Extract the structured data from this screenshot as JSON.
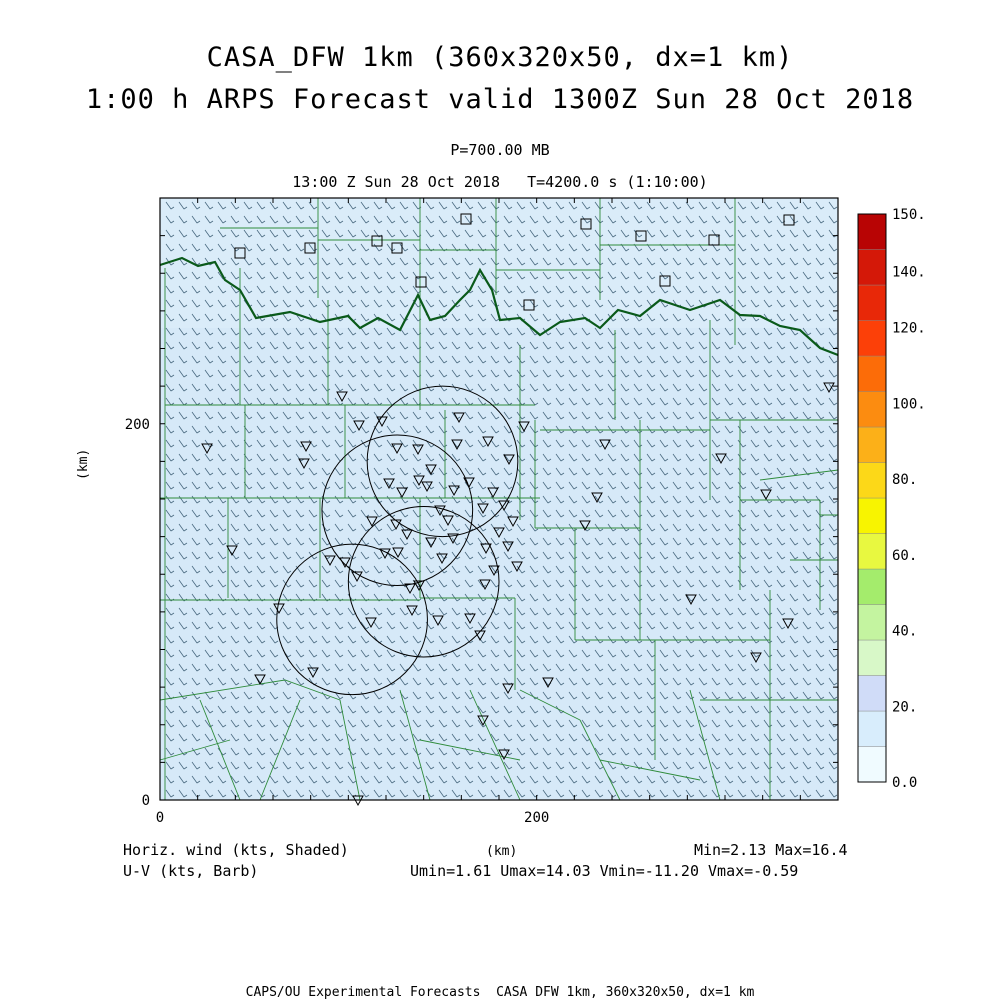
{
  "title": {
    "line1": "CASA_DFW 1km (360x320x50, dx=1 km)",
    "line2": "1:00 h ARPS Forecast valid 1300Z Sun 28 Oct 2018"
  },
  "subtitle": {
    "level": "P=700.00 MB",
    "time": "13:00 Z Sun 28 Oct 2018   T=4200.0 s (1:10:00)"
  },
  "axes": {
    "x_unit": "(km)",
    "y_unit": "(km)",
    "x_ticks": [
      {
        "value": 0,
        "label": "0"
      },
      {
        "value": 200,
        "label": "200"
      }
    ],
    "y_ticks": [
      {
        "value": 0,
        "label": "0"
      },
      {
        "value": 200,
        "label": "200"
      }
    ],
    "x_range": [
      0,
      360
    ],
    "y_range": [
      0,
      320
    ]
  },
  "colorbar": {
    "labels": [
      "150.",
      "140.",
      "120.",
      "100.",
      "80.",
      "60.",
      "40.",
      "20.",
      "0.0"
    ],
    "levels": [
      150,
      140,
      120,
      100,
      80,
      60,
      40,
      20,
      0
    ],
    "colors": [
      "#f0fbff",
      "#d8edfc",
      "#d0dcf8",
      "#d8f8c8",
      "#c4f4a0",
      "#a4ec6c",
      "#e8f840",
      "#f8f400",
      "#fcd818",
      "#fcb018",
      "#fc8c10",
      "#fc6c08",
      "#fc4008",
      "#e82808",
      "#d41808",
      "#b80404"
    ]
  },
  "stats": {
    "left1": "Horiz. wind (kts, Shaded)",
    "left2": "U-V (kts, Barb)",
    "right1": "Min=2.13 Max=16.4",
    "right2": "Umin=1.61 Umax=14.03 Vmin=-11.20 Vmax=-0.59"
  },
  "map": {
    "fill_color": "#d6e9f8",
    "county_color": "#2e8b3a",
    "boundary_color": "#0a5a1a",
    "barb_color": "#4a6a80",
    "radar_rings_km": [
      {
        "x": 150,
        "y": 180,
        "r": 40
      },
      {
        "x": 126,
        "y": 154,
        "r": 40
      },
      {
        "x": 140,
        "y": 116,
        "r": 40
      },
      {
        "x": 102,
        "y": 96,
        "r": 40
      }
    ]
  },
  "footer": "CAPS/OU Experimental Forecasts  CASA DFW 1km, 360x320x50, dx=1 km"
}
